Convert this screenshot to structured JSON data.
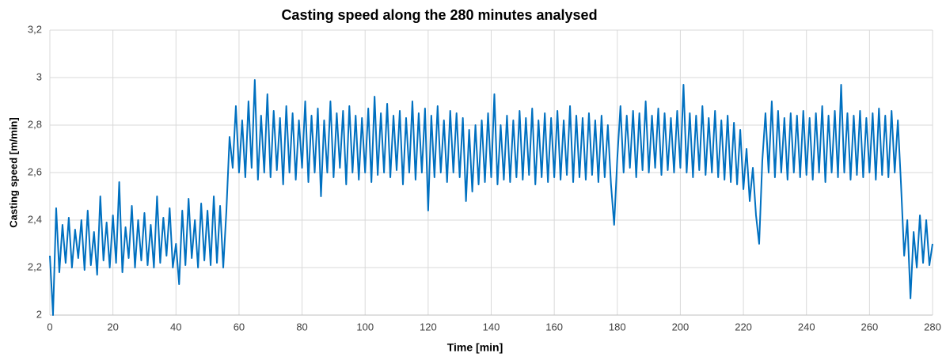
{
  "chart_data": {
    "type": "line",
    "title": "Casting speed along the 280 minutes analysed",
    "x_label": "Time [min]",
    "y_label": "Casting speed [m/min]",
    "color": "#0070c0",
    "grid": true,
    "xlim": [
      0,
      280
    ],
    "xticks": [
      0,
      20,
      40,
      60,
      80,
      100,
      120,
      140,
      160,
      180,
      200,
      220,
      240,
      260,
      280
    ],
    "ylim": [
      2,
      3.2
    ],
    "yticks": [
      2,
      {
        "value": 2.2,
        "label": "2,2"
      },
      {
        "value": 2.4,
        "label": "2,4"
      },
      {
        "value": 2.6,
        "label": "2,6"
      },
      {
        "value": 2.8,
        "label": "2,8"
      },
      3,
      {
        "value": 3.2,
        "label": "3,2"
      }
    ],
    "x": [
      0,
      1,
      2,
      3,
      4,
      5,
      6,
      7,
      8,
      9,
      10,
      11,
      12,
      13,
      14,
      15,
      16,
      17,
      18,
      19,
      20,
      21,
      22,
      23,
      24,
      25,
      26,
      27,
      28,
      29,
      30,
      31,
      32,
      33,
      34,
      35,
      36,
      37,
      38,
      39,
      40,
      41,
      42,
      43,
      44,
      45,
      46,
      47,
      48,
      49,
      50,
      51,
      52,
      53,
      54,
      55,
      56,
      57,
      58,
      59,
      60,
      61,
      62,
      63,
      64,
      65,
      66,
      67,
      68,
      69,
      70,
      71,
      72,
      73,
      74,
      75,
      76,
      77,
      78,
      79,
      80,
      81,
      82,
      83,
      84,
      85,
      86,
      87,
      88,
      89,
      90,
      91,
      92,
      93,
      94,
      95,
      96,
      97,
      98,
      99,
      100,
      101,
      102,
      103,
      104,
      105,
      106,
      107,
      108,
      109,
      110,
      111,
      112,
      113,
      114,
      115,
      116,
      117,
      118,
      119,
      120,
      121,
      122,
      123,
      124,
      125,
      126,
      127,
      128,
      129,
      130,
      131,
      132,
      133,
      134,
      135,
      136,
      137,
      138,
      139,
      140,
      141,
      142,
      143,
      144,
      145,
      146,
      147,
      148,
      149,
      150,
      151,
      152,
      153,
      154,
      155,
      156,
      157,
      158,
      159,
      160,
      161,
      162,
      163,
      164,
      165,
      166,
      167,
      168,
      169,
      170,
      171,
      172,
      173,
      174,
      175,
      176,
      177,
      178,
      179,
      180,
      181,
      182,
      183,
      184,
      185,
      186,
      187,
      188,
      189,
      190,
      191,
      192,
      193,
      194,
      195,
      196,
      197,
      198,
      199,
      200,
      201,
      202,
      203,
      204,
      205,
      206,
      207,
      208,
      209,
      210,
      211,
      212,
      213,
      214,
      215,
      216,
      217,
      218,
      219,
      220,
      221,
      222,
      223,
      224,
      225,
      226,
      227,
      228,
      229,
      230,
      231,
      232,
      233,
      234,
      235,
      236,
      237,
      238,
      239,
      240,
      241,
      242,
      243,
      244,
      245,
      246,
      247,
      248,
      249,
      250,
      251,
      252,
      253,
      254,
      255,
      256,
      257,
      258,
      259,
      260,
      261,
      262,
      263,
      264,
      265,
      266,
      267,
      268,
      269,
      270,
      271,
      272,
      273,
      274,
      275,
      276,
      277,
      278,
      279,
      280
    ],
    "values": [
      2.25,
      2.0,
      2.45,
      2.18,
      2.38,
      2.22,
      2.41,
      2.2,
      2.36,
      2.24,
      2.4,
      2.19,
      2.44,
      2.21,
      2.35,
      2.17,
      2.5,
      2.23,
      2.39,
      2.2,
      2.42,
      2.22,
      2.56,
      2.18,
      2.37,
      2.24,
      2.46,
      2.2,
      2.4,
      2.23,
      2.43,
      2.21,
      2.38,
      2.2,
      2.5,
      2.22,
      2.41,
      2.25,
      2.45,
      2.2,
      2.3,
      2.13,
      2.44,
      2.21,
      2.49,
      2.24,
      2.4,
      2.2,
      2.47,
      2.23,
      2.44,
      2.21,
      2.5,
      2.22,
      2.46,
      2.2,
      2.44,
      2.75,
      2.62,
      2.88,
      2.6,
      2.82,
      2.58,
      2.9,
      2.62,
      2.99,
      2.57,
      2.84,
      2.6,
      2.93,
      2.58,
      2.86,
      2.61,
      2.83,
      2.55,
      2.88,
      2.6,
      2.85,
      2.57,
      2.82,
      2.62,
      2.9,
      2.56,
      2.84,
      2.6,
      2.87,
      2.5,
      2.82,
      2.6,
      2.9,
      2.58,
      2.85,
      2.62,
      2.86,
      2.55,
      2.88,
      2.6,
      2.84,
      2.57,
      2.83,
      2.6,
      2.87,
      2.56,
      2.92,
      2.59,
      2.85,
      2.6,
      2.89,
      2.58,
      2.84,
      2.61,
      2.86,
      2.55,
      2.83,
      2.6,
      2.9,
      2.57,
      2.85,
      2.6,
      2.87,
      2.44,
      2.84,
      2.58,
      2.88,
      2.6,
      2.82,
      2.56,
      2.86,
      2.6,
      2.85,
      2.58,
      2.83,
      2.48,
      2.78,
      2.52,
      2.8,
      2.55,
      2.82,
      2.56,
      2.85,
      2.58,
      2.93,
      2.55,
      2.8,
      2.57,
      2.84,
      2.56,
      2.82,
      2.58,
      2.86,
      2.57,
      2.83,
      2.59,
      2.87,
      2.55,
      2.82,
      2.58,
      2.85,
      2.56,
      2.83,
      2.58,
      2.86,
      2.57,
      2.82,
      2.59,
      2.88,
      2.56,
      2.84,
      2.58,
      2.83,
      2.57,
      2.85,
      2.59,
      2.82,
      2.56,
      2.84,
      2.58,
      2.8,
      2.55,
      2.38,
      2.66,
      2.88,
      2.6,
      2.84,
      2.62,
      2.86,
      2.58,
      2.85,
      2.61,
      2.9,
      2.6,
      2.84,
      2.62,
      2.87,
      2.59,
      2.85,
      2.61,
      2.83,
      2.6,
      2.86,
      2.62,
      2.97,
      2.6,
      2.85,
      2.58,
      2.84,
      2.61,
      2.88,
      2.59,
      2.83,
      2.6,
      2.86,
      2.58,
      2.82,
      2.57,
      2.84,
      2.56,
      2.81,
      2.55,
      2.78,
      2.53,
      2.7,
      2.48,
      2.62,
      2.42,
      2.3,
      2.65,
      2.85,
      2.6,
      2.9,
      2.58,
      2.86,
      2.6,
      2.83,
      2.57,
      2.85,
      2.6,
      2.84,
      2.58,
      2.86,
      2.59,
      2.83,
      2.57,
      2.85,
      2.6,
      2.88,
      2.56,
      2.84,
      2.6,
      2.86,
      2.58,
      2.97,
      2.6,
      2.85,
      2.57,
      2.84,
      2.59,
      2.86,
      2.58,
      2.83,
      2.6,
      2.85,
      2.57,
      2.87,
      2.59,
      2.84,
      2.58,
      2.86,
      2.6,
      2.82,
      2.55,
      2.25,
      2.4,
      2.07,
      2.35,
      2.2,
      2.42,
      2.22,
      2.4,
      2.21,
      2.3
    ]
  }
}
